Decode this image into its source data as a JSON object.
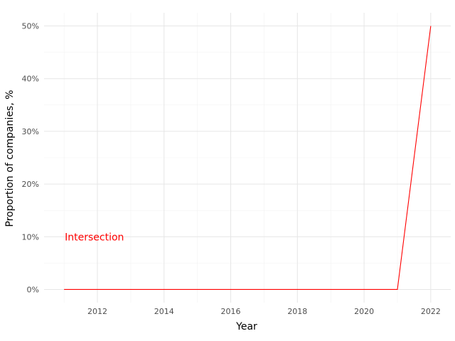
{
  "chart_data": {
    "type": "line",
    "xlabel": "Year",
    "ylabel": "Proportion of companies, %",
    "xlim": [
      2010.4,
      2022.6
    ],
    "ylim": [
      -2.5,
      52.5
    ],
    "x_ticks": [
      2012,
      2014,
      2016,
      2018,
      2020,
      2022
    ],
    "x_tick_labels": [
      "2012",
      "2014",
      "2016",
      "2018",
      "2020",
      "2022"
    ],
    "y_ticks": [
      0,
      10,
      20,
      30,
      40,
      50
    ],
    "y_tick_labels": [
      "0%",
      "10%",
      "20%",
      "30%",
      "40%",
      "50%"
    ],
    "grid": true,
    "series": [
      {
        "color": "#ff0000",
        "x": [
          2011,
          2012,
          2013,
          2014,
          2015,
          2016,
          2017,
          2018,
          2019,
          2020,
          2021,
          2022
        ],
        "y": [
          0,
          0,
          0,
          0,
          0,
          0,
          0,
          0,
          0,
          0,
          0,
          50
        ]
      }
    ],
    "annotations": [
      {
        "text": "Intersection",
        "x": 2011,
        "y": 10,
        "color": "#ff0000"
      }
    ]
  }
}
